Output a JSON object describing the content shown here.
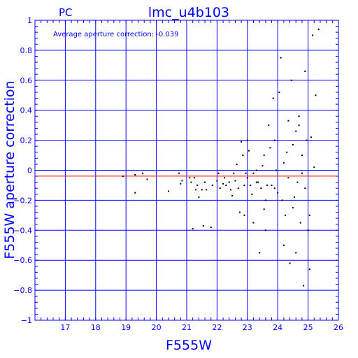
{
  "chart_data": {
    "type": "scatter",
    "title": "lmc_u4b103",
    "corner_label": "PC",
    "annotation": "Average aperture correction: -0.039",
    "xlabel": "F555W",
    "ylabel": "F555W aperture correction",
    "xlim": [
      16,
      26
    ],
    "ylim": [
      -1,
      1
    ],
    "xticks": [
      17,
      18,
      19,
      20,
      21,
      22,
      23,
      24,
      25,
      26
    ],
    "yticks": [
      -1,
      -0.8,
      -0.6,
      -0.4,
      -0.2,
      0,
      0.2,
      0.4,
      0.6,
      0.8,
      1
    ],
    "xtick_labels": [
      "17",
      "18",
      "19",
      "20",
      "21",
      "22",
      "23",
      "24",
      "25",
      "26"
    ],
    "ytick_labels": [
      "−1",
      "−0.8",
      "−0.6",
      "−0.4",
      "−0.2",
      "0",
      "0.2",
      "0.4",
      "0.6",
      "0.8",
      "1"
    ],
    "grid": true,
    "reference_line": {
      "y": -0.039,
      "color": "#ff0000"
    },
    "colors": {
      "frame": "#0000ff",
      "grid": "#0000ff",
      "text": "#0000ff",
      "points": "#000000",
      "reference": "#ff0000"
    },
    "points": [
      [
        18.9,
        -0.04
      ],
      [
        19.3,
        -0.03
      ],
      [
        19.3,
        -0.15
      ],
      [
        19.55,
        -0.02
      ],
      [
        19.7,
        -0.06
      ],
      [
        20.4,
        -0.14
      ],
      [
        20.75,
        -0.02
      ],
      [
        20.8,
        -0.09
      ],
      [
        20.85,
        -0.07
      ],
      [
        21.1,
        -0.05
      ],
      [
        21.15,
        -0.08
      ],
      [
        21.2,
        -0.39
      ],
      [
        21.25,
        -0.05
      ],
      [
        21.3,
        -0.13
      ],
      [
        21.35,
        -0.1
      ],
      [
        21.4,
        -0.18
      ],
      [
        21.5,
        -0.13
      ],
      [
        21.55,
        -0.37
      ],
      [
        21.6,
        -0.08
      ],
      [
        21.65,
        -0.13
      ],
      [
        21.8,
        -0.38
      ],
      [
        21.85,
        -0.1
      ],
      [
        22.0,
        -0.07
      ],
      [
        22.05,
        -0.02
      ],
      [
        22.1,
        -0.12
      ],
      [
        22.2,
        -0.09
      ],
      [
        22.25,
        -0.05
      ],
      [
        22.3,
        -0.1
      ],
      [
        22.4,
        -0.08
      ],
      [
        22.45,
        -0.13
      ],
      [
        22.5,
        -0.17
      ],
      [
        22.55,
        -0.02
      ],
      [
        22.6,
        -0.07
      ],
      [
        22.65,
        0.04
      ],
      [
        22.7,
        -0.12
      ],
      [
        22.75,
        -0.28
      ],
      [
        22.8,
        0.19
      ],
      [
        22.85,
        0.1
      ],
      [
        22.9,
        -0.1
      ],
      [
        22.95,
        -0.02
      ],
      [
        23.0,
        -0.05
      ],
      [
        23.05,
        0.13
      ],
      [
        23.1,
        -0.1
      ],
      [
        23.15,
        -0.16
      ],
      [
        23.2,
        -0.02
      ],
      [
        23.3,
        0.0
      ],
      [
        23.35,
        -0.08
      ],
      [
        23.4,
        -0.55
      ],
      [
        23.45,
        -0.12
      ],
      [
        23.5,
        0.03
      ],
      [
        23.55,
        -0.26
      ],
      [
        23.6,
        -0.2
      ],
      [
        23.65,
        -0.1
      ],
      [
        23.7,
        0.3
      ],
      [
        23.75,
        0.15
      ],
      [
        23.8,
        -0.1
      ],
      [
        23.85,
        0.48
      ],
      [
        23.9,
        0.2
      ],
      [
        23.95,
        0.0
      ],
      [
        24.0,
        -0.15
      ],
      [
        24.05,
        0.52
      ],
      [
        24.1,
        0.75
      ],
      [
        24.15,
        -0.2
      ],
      [
        24.2,
        0.05
      ],
      [
        24.25,
        -0.3
      ],
      [
        24.3,
        0.12
      ],
      [
        24.35,
        -0.05
      ],
      [
        24.4,
        -0.62
      ],
      [
        24.45,
        0.6
      ],
      [
        24.5,
        0.17
      ],
      [
        24.55,
        -0.18
      ],
      [
        24.6,
        0.26
      ],
      [
        24.65,
        -0.08
      ],
      [
        24.7,
        0.36
      ],
      [
        24.75,
        -0.35
      ],
      [
        24.8,
        0.1
      ],
      [
        24.85,
        -0.77
      ],
      [
        24.9,
        0.66
      ],
      [
        24.95,
        0.2
      ],
      [
        25.0,
        -0.4
      ],
      [
        25.05,
        -0.66
      ],
      [
        25.1,
        0.22
      ],
      [
        25.15,
        0.9
      ],
      [
        25.2,
        0.02
      ],
      [
        25.25,
        0.5
      ],
      [
        25.35,
        0.94
      ],
      [
        22.9,
        -0.3
      ],
      [
        23.3,
        -0.08
      ],
      [
        23.6,
        -0.4
      ],
      [
        23.9,
        -0.12
      ],
      [
        24.2,
        -0.5
      ],
      [
        24.5,
        -0.25
      ],
      [
        24.7,
        0.3
      ],
      [
        24.9,
        -0.12
      ],
      [
        25.05,
        -0.3
      ],
      [
        23.2,
        -0.35
      ],
      [
        23.55,
        0.1
      ],
      [
        24.35,
        0.33
      ],
      [
        24.6,
        -0.55
      ],
      [
        24.8,
        -0.02
      ],
      [
        23.0,
        0.2
      ]
    ]
  }
}
